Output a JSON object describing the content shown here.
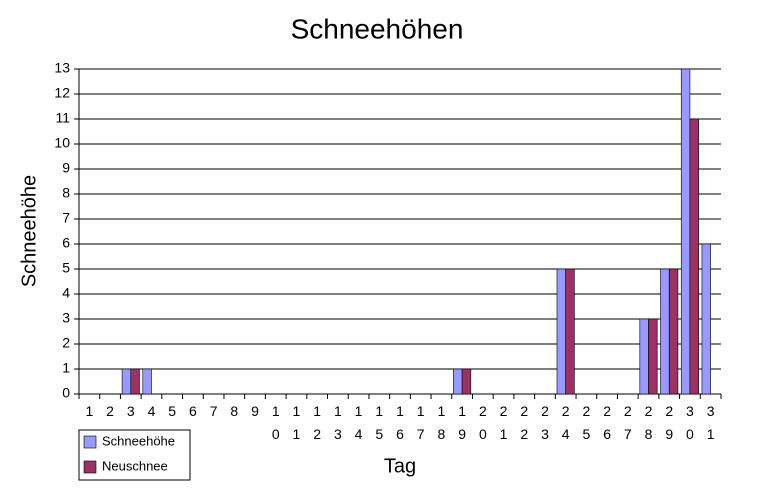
{
  "chart_data": {
    "type": "bar",
    "title": "Schneehöhen",
    "x_label": "Tag",
    "y_label": "Schneehöhe",
    "categories": [
      "1",
      "2",
      "3",
      "4",
      "5",
      "6",
      "7",
      "8",
      "9",
      "10",
      "11",
      "12",
      "13",
      "14",
      "15",
      "16",
      "17",
      "18",
      "19",
      "20",
      "21",
      "22",
      "23",
      "24",
      "25",
      "26",
      "27",
      "28",
      "29",
      "30",
      "31"
    ],
    "series": [
      {
        "name": "Schneehöhe",
        "color": "#9999ff",
        "values": [
          0,
          0,
          1,
          1,
          0,
          0,
          0,
          0,
          0,
          0,
          0,
          0,
          0,
          0,
          0,
          0,
          0,
          0,
          1,
          0,
          0,
          0,
          0,
          5,
          0,
          0,
          0,
          3,
          5,
          13,
          6
        ]
      },
      {
        "name": "Neuschnee",
        "color": "#993366",
        "values": [
          0,
          0,
          1,
          0,
          0,
          0,
          0,
          0,
          0,
          0,
          0,
          0,
          0,
          0,
          0,
          0,
          0,
          0,
          1,
          0,
          0,
          0,
          0,
          5,
          0,
          0,
          0,
          3,
          5,
          11,
          0
        ]
      }
    ],
    "ylim": [
      0,
      13
    ],
    "yticks": [
      0,
      1,
      2,
      3,
      4,
      5,
      6,
      7,
      8,
      9,
      10,
      11,
      12,
      13
    ],
    "grid": true,
    "legend": "bottom-left"
  }
}
